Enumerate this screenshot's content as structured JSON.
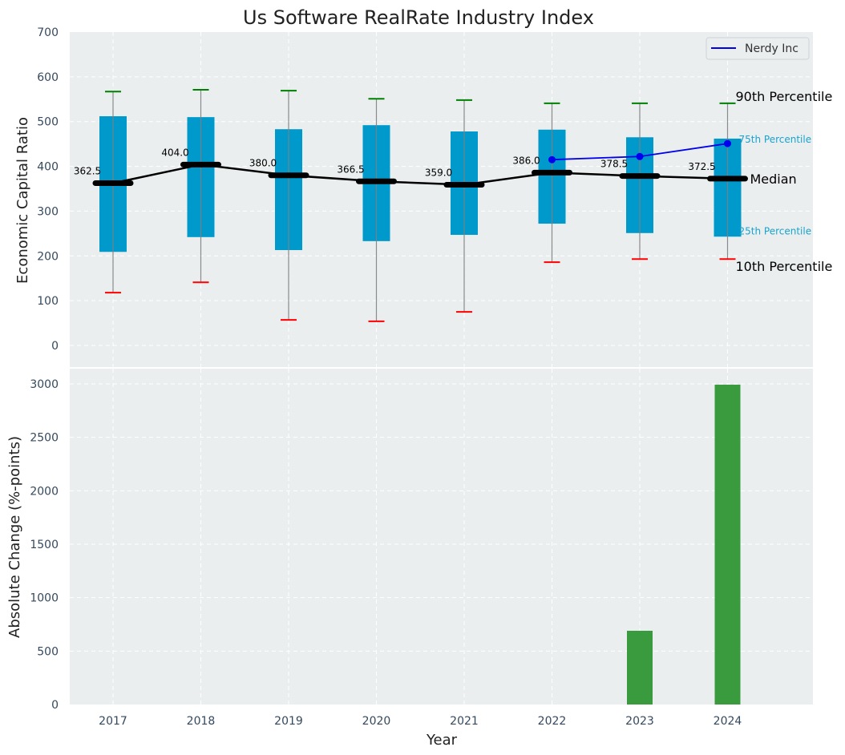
{
  "chart_data": [
    {
      "type": "box",
      "title": "Us Software RealRate Industry Index",
      "xlabel": "",
      "ylabel": "Economic Capital Ratio",
      "ylim": [
        -50,
        700
      ],
      "yticks": [
        0,
        100,
        200,
        300,
        400,
        500,
        600,
        700
      ],
      "categories": [
        "2017",
        "2018",
        "2019",
        "2020",
        "2021",
        "2022",
        "2023",
        "2024"
      ],
      "grid": true,
      "series": [
        {
          "name": "90th Percentile",
          "values": [
            567,
            571,
            569,
            551,
            548,
            541,
            541,
            541
          ]
        },
        {
          "name": "75th Percentile",
          "values": [
            512,
            510,
            483,
            492,
            478,
            482,
            465,
            462
          ]
        },
        {
          "name": "Median",
          "values": [
            362.5,
            404.0,
            380.0,
            366.5,
            359.0,
            386.0,
            378.5,
            372.5
          ]
        },
        {
          "name": "25th Percentile",
          "values": [
            209,
            242,
            213,
            233,
            247,
            272,
            251,
            243
          ]
        },
        {
          "name": "10th Percentile",
          "values": [
            118,
            141,
            57,
            54,
            75,
            186,
            193,
            193
          ]
        },
        {
          "name": "Nerdy Inc",
          "categories": [
            "2022",
            "2023",
            "2024"
          ],
          "values": [
            415,
            422,
            451
          ]
        }
      ],
      "median_labels": [
        "362.5",
        "404.0",
        "380.0",
        "366.5",
        "359.0",
        "386.0",
        "378.5",
        "372.5"
      ],
      "annotations": [
        "90th Percentile",
        "75th Percentile",
        "Median",
        "25th Percentile",
        "10th Percentile"
      ],
      "legend": {
        "entries": [
          "Nerdy Inc"
        ],
        "placement": "top-right"
      },
      "colors": {
        "box": "#0099cc",
        "median": "#000000",
        "p90": "#008000",
        "p10": "#ff0000",
        "company": "#0000ee",
        "whisker": "#808080"
      }
    },
    {
      "type": "bar",
      "title": "",
      "xlabel": "Year",
      "ylabel": "Absolute Change (%-points)",
      "ylim": [
        0,
        3150
      ],
      "yticks": [
        0,
        500,
        1000,
        1500,
        2000,
        2500,
        3000
      ],
      "categories": [
        "2017",
        "2018",
        "2019",
        "2020",
        "2021",
        "2022",
        "2023",
        "2024"
      ],
      "values": [
        0,
        0,
        0,
        0,
        0,
        0,
        690,
        2993
      ],
      "grid": true,
      "colors": {
        "bar": "#3a9a3e"
      }
    }
  ]
}
